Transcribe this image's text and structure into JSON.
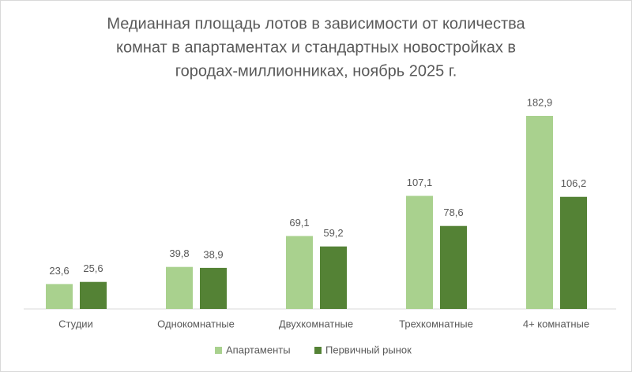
{
  "chart_data": {
    "type": "bar",
    "title_lines": [
      "Медианная площадь лотов в зависимости от количества",
      "комнат в апартаментах и стандартных новостройках в",
      "городах-миллионниках, ноябрь 2025 г."
    ],
    "categories": [
      "Студии",
      "Однокомнатные",
      "Двухкомнатные",
      "Трехкомнатные",
      "4+ комнатные"
    ],
    "series": [
      {
        "name": "Апартаменты",
        "color": "#a9d18e",
        "values": [
          23.6,
          39.8,
          69.1,
          107.1,
          182.9
        ],
        "value_labels": [
          "23,6",
          "39,8",
          "69,1",
          "107,1",
          "182,9"
        ]
      },
      {
        "name": "Первичный рынок",
        "color": "#548235",
        "values": [
          25.6,
          38.9,
          59.2,
          78.6,
          106.2
        ],
        "value_labels": [
          "25,6",
          "38,9",
          "59,2",
          "78,6",
          "106,2"
        ]
      }
    ]
  }
}
